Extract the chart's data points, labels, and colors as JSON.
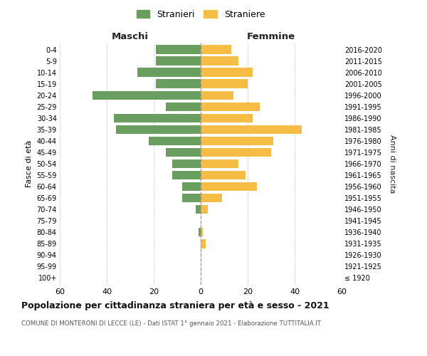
{
  "age_groups": [
    "100+",
    "95-99",
    "90-94",
    "85-89",
    "80-84",
    "75-79",
    "70-74",
    "65-69",
    "60-64",
    "55-59",
    "50-54",
    "45-49",
    "40-44",
    "35-39",
    "30-34",
    "25-29",
    "20-24",
    "15-19",
    "10-14",
    "5-9",
    "0-4"
  ],
  "birth_years": [
    "≤ 1920",
    "1921-1925",
    "1926-1930",
    "1931-1935",
    "1936-1940",
    "1941-1945",
    "1946-1950",
    "1951-1955",
    "1956-1960",
    "1961-1965",
    "1966-1970",
    "1971-1975",
    "1976-1980",
    "1981-1985",
    "1986-1990",
    "1991-1995",
    "1996-2000",
    "2001-2005",
    "2006-2010",
    "2011-2015",
    "2016-2020"
  ],
  "maschi": [
    0,
    0,
    0,
    0,
    1,
    0,
    2,
    8,
    8,
    12,
    12,
    15,
    22,
    36,
    37,
    15,
    46,
    19,
    27,
    19,
    19
  ],
  "femmine": [
    0,
    0,
    0,
    2,
    1,
    0,
    3,
    9,
    24,
    19,
    16,
    30,
    31,
    43,
    22,
    25,
    14,
    20,
    22,
    16,
    13
  ],
  "color_maschi": "#6a9e5e",
  "color_femmine": "#f5bd45",
  "title": "Popolazione per cittadinanza straniera per età e sesso - 2021",
  "subtitle": "COMUNE DI MONTERONI DI LECCE (LE) - Dati ISTAT 1° gennaio 2021 - Elaborazione TUTTITALIA.IT",
  "label_maschi": "Stranieri",
  "label_femmine": "Straniere",
  "header_left": "Maschi",
  "header_right": "Femmine",
  "ylabel_left": "Fasce di età",
  "ylabel_right": "Anni di nascita",
  "xlim": 60,
  "background_color": "#ffffff",
  "grid_color": "#cccccc"
}
